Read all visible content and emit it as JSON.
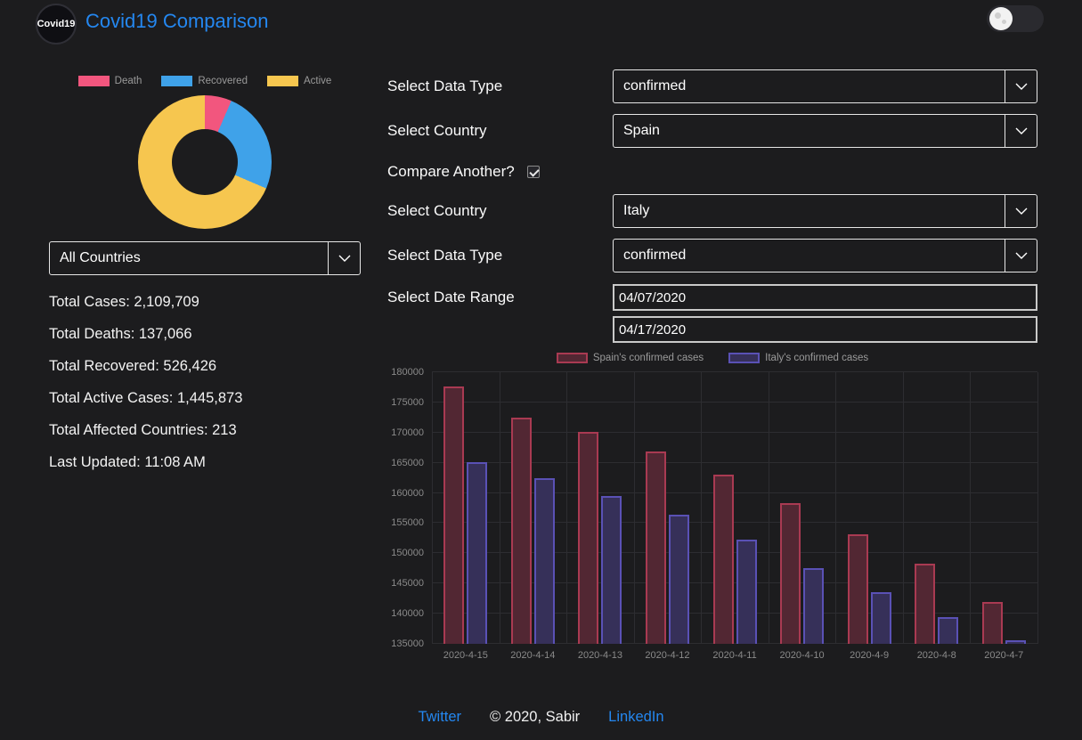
{
  "header": {
    "logo_text": "Covid19",
    "title": "Covid19 Comparison"
  },
  "overview": {
    "country_select": "All Countries",
    "stats": [
      "Total Cases: 2,109,709",
      "Total Deaths: 137,066",
      "Total Recovered: 526,426",
      "Total Active Cases: 1,445,873",
      "Total Affected Countries: 213",
      "Last Updated: 11:08 AM"
    ]
  },
  "form": {
    "data_type_1": {
      "label": "Select Data Type",
      "value": "confirmed"
    },
    "country_1": {
      "label": "Select Country",
      "value": "Spain"
    },
    "compare": {
      "label": "Compare Another?",
      "checked": true
    },
    "country_2": {
      "label": "Select Country",
      "value": "Italy"
    },
    "data_type_2": {
      "label": "Select Data Type",
      "value": "confirmed"
    },
    "date_range": {
      "label": "Select Date Range",
      "start": "04/07/2020",
      "end": "04/17/2020"
    }
  },
  "chart_data": [
    {
      "type": "pie",
      "donut": true,
      "labels": [
        "Death",
        "Recovered",
        "Active"
      ],
      "values": [
        137066,
        526426,
        1445873
      ],
      "colors": [
        "#f2567e",
        "#3fa2e9",
        "#f6c64f"
      ],
      "legend_position": "top"
    },
    {
      "type": "bar",
      "categories": [
        "2020-4-15",
        "2020-4-14",
        "2020-4-13",
        "2020-4-12",
        "2020-4-11",
        "2020-4-10",
        "2020-4-9",
        "2020-4-8",
        "2020-4-7"
      ],
      "series": [
        {
          "name": "Spain's confirmed cases",
          "values": [
            177633,
            172541,
            170099,
            166831,
            163027,
            158273,
            153222,
            148220,
            141942
          ],
          "fill": "#522733",
          "border": "#a93a52"
        },
        {
          "name": "Italy's confirmed cases",
          "values": [
            165155,
            162488,
            159516,
            156363,
            152271,
            147577,
            143626,
            139422,
            135586
          ],
          "fill": "#363059",
          "border": "#5a51b5"
        }
      ],
      "ylim": [
        135000,
        180000
      ],
      "yticks": [
        135000,
        140000,
        145000,
        150000,
        155000,
        160000,
        165000,
        170000,
        175000,
        180000
      ],
      "grid": true,
      "legend_position": "top"
    }
  ],
  "footer": {
    "twitter": "Twitter",
    "copyright": "© 2020, Sabir",
    "linkedin": "LinkedIn"
  }
}
